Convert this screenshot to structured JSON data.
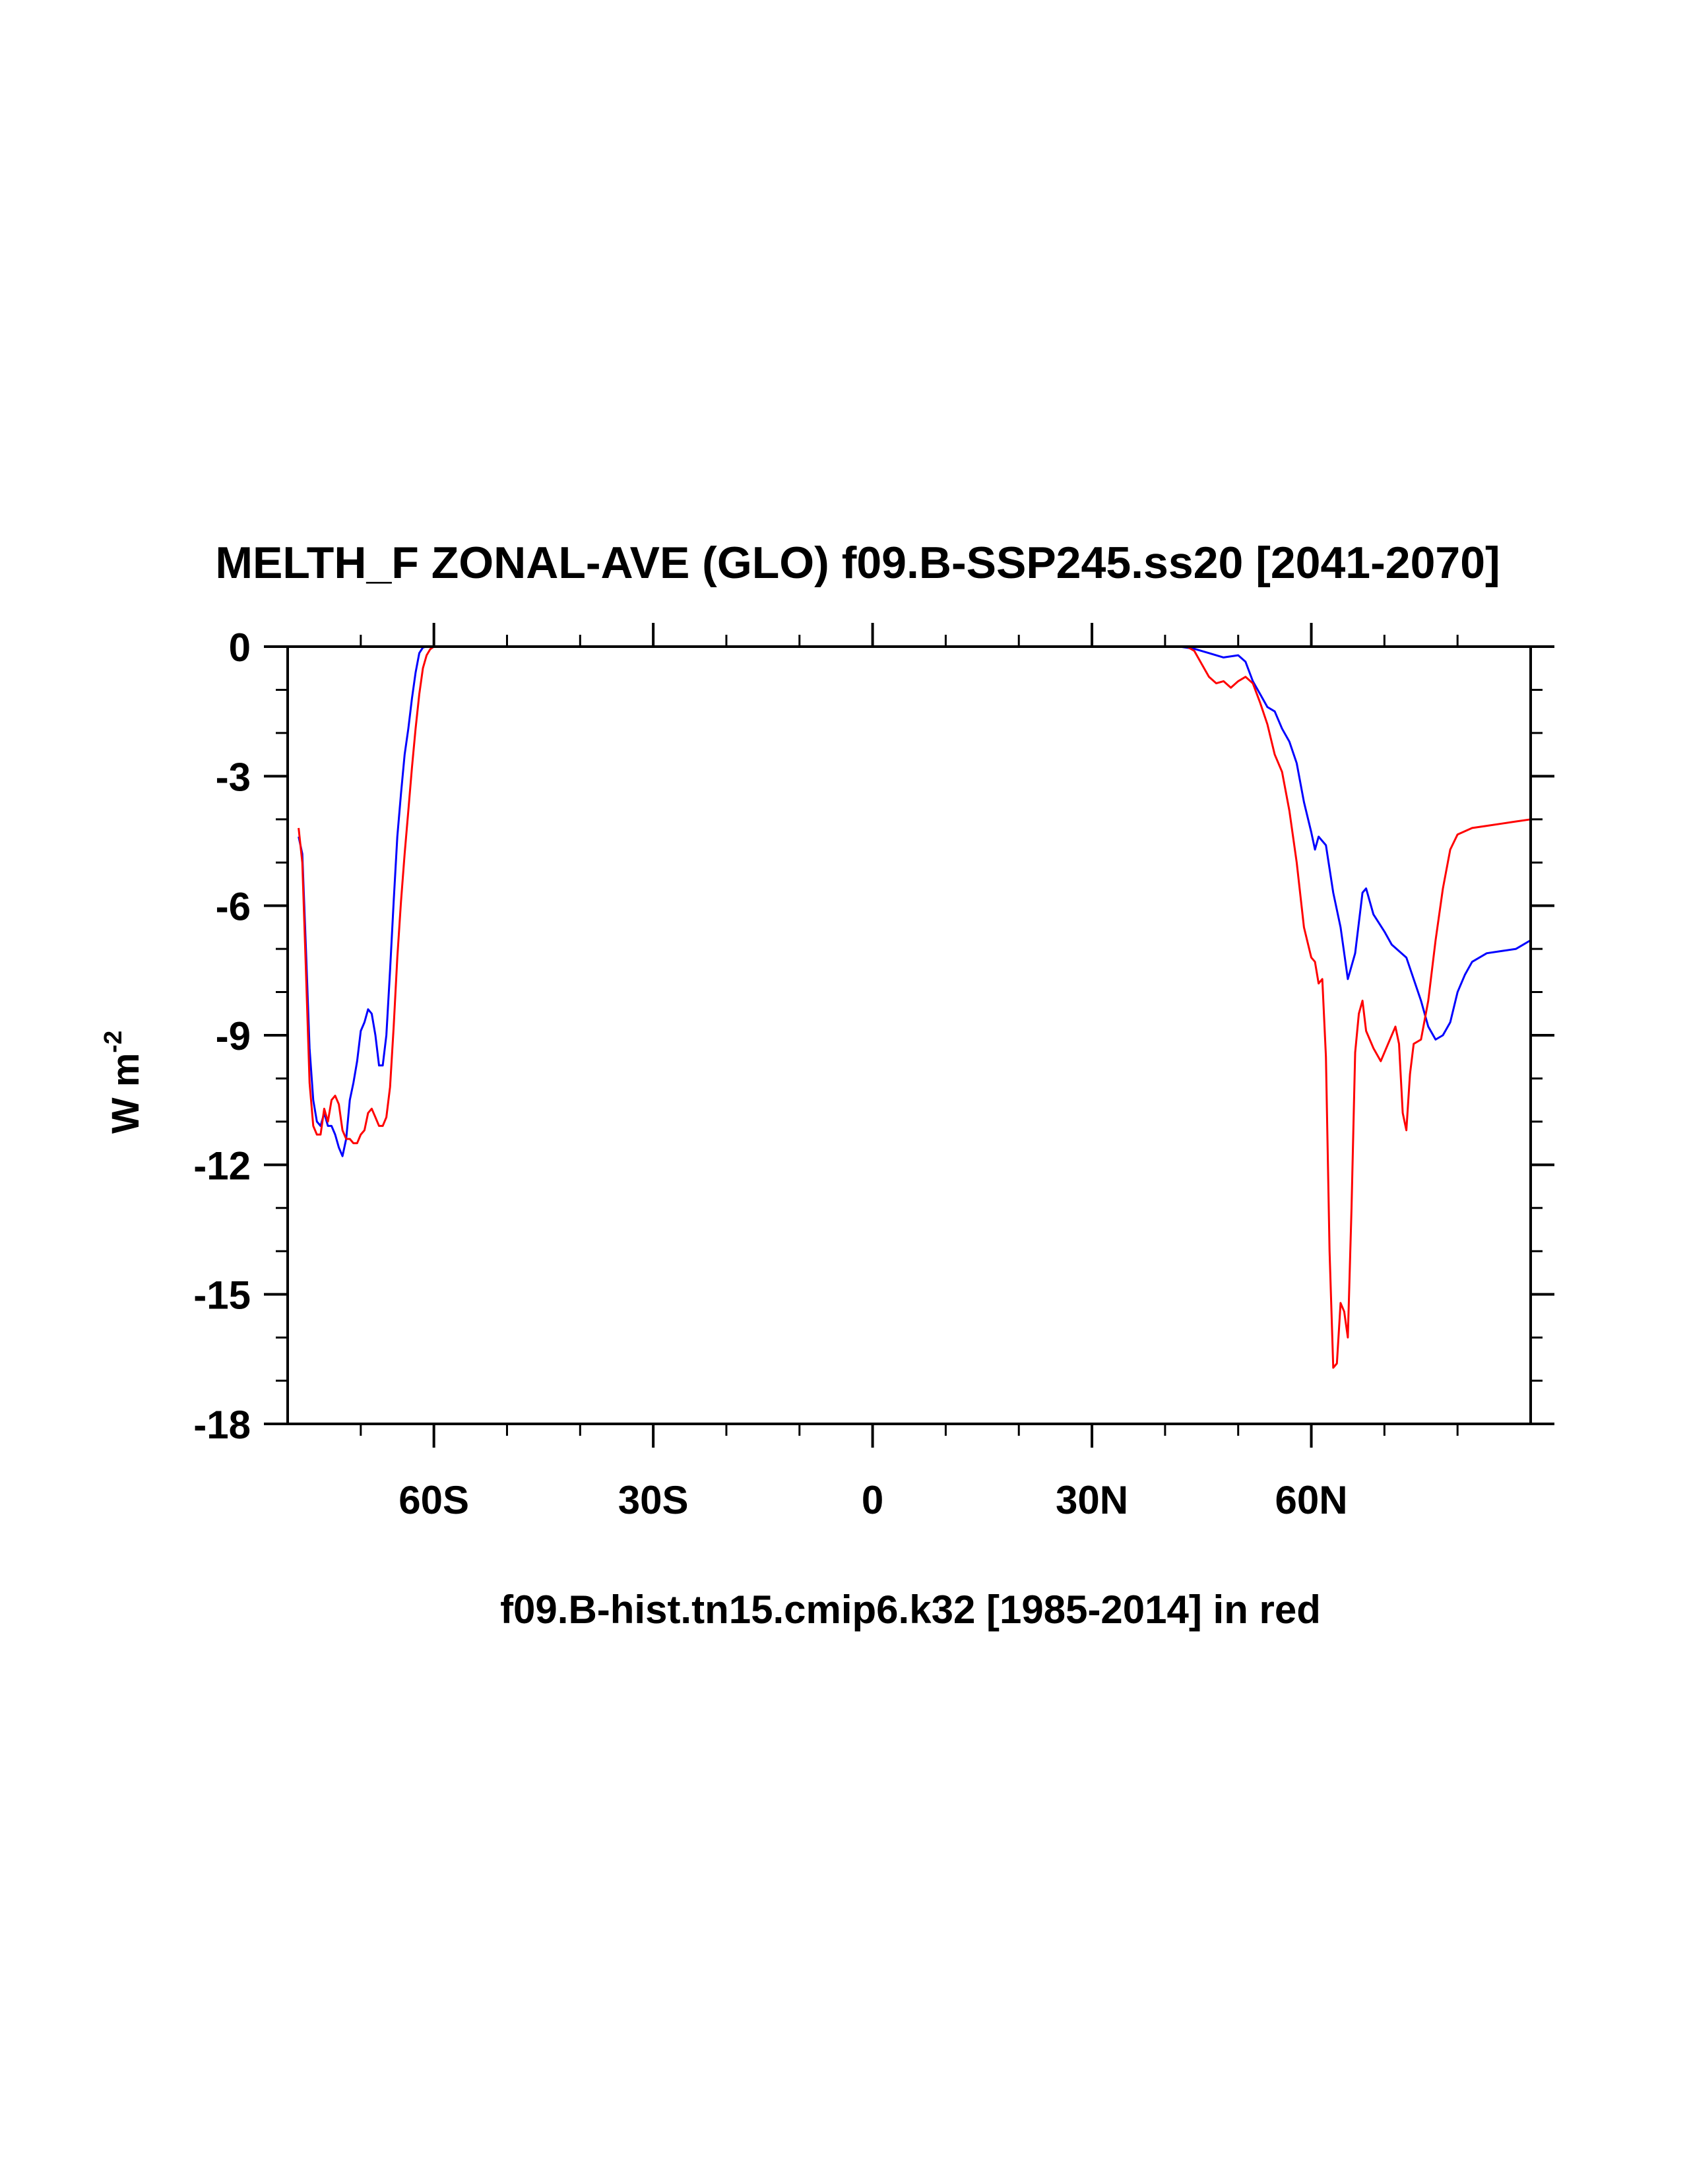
{
  "chart_data": {
    "type": "line",
    "title": "MELTH_F ZONAL-AVE (GLO) f09.B-SSP245.ss20 [2041-2070]",
    "ylabel": "W m",
    "ylabel_superscript": "-2",
    "footer": "f09.B-hist.tn15.cmip6.k32 [1985-2014] in red",
    "xlim": [
      -80,
      90
    ],
    "ylim": [
      -18,
      0
    ],
    "x_ticks": [
      {
        "value": -60,
        "label": "60S"
      },
      {
        "value": -30,
        "label": "30S"
      },
      {
        "value": 0,
        "label": "0"
      },
      {
        "value": 30,
        "label": "30N"
      },
      {
        "value": 60,
        "label": "60N"
      }
    ],
    "y_ticks": [
      {
        "value": 0,
        "label": "0"
      },
      {
        "value": -3,
        "label": "-3"
      },
      {
        "value": -6,
        "label": "-6"
      },
      {
        "value": -9,
        "label": "-9"
      },
      {
        "value": -12,
        "label": "-12"
      },
      {
        "value": -15,
        "label": "-15"
      },
      {
        "value": -18,
        "label": "-18"
      }
    ],
    "grid": false,
    "series": [
      {
        "color": "#0000ff",
        "points": [
          [
            -78.5,
            -4.4
          ],
          [
            -78,
            -4.8
          ],
          [
            -77.5,
            -7.0
          ],
          [
            -77,
            -9.3
          ],
          [
            -76.5,
            -10.5
          ],
          [
            -76,
            -11.0
          ],
          [
            -75.5,
            -11.1
          ],
          [
            -75,
            -10.8
          ],
          [
            -74.5,
            -11.1
          ],
          [
            -74,
            -11.1
          ],
          [
            -73.5,
            -11.3
          ],
          [
            -73,
            -11.6
          ],
          [
            -72.5,
            -11.8
          ],
          [
            -72,
            -11.4
          ],
          [
            -71.5,
            -10.5
          ],
          [
            -71,
            -10.1
          ],
          [
            -70.5,
            -9.6
          ],
          [
            -70,
            -8.9
          ],
          [
            -69.5,
            -8.7
          ],
          [
            -69,
            -8.4
          ],
          [
            -68.5,
            -8.5
          ],
          [
            -68,
            -9.0
          ],
          [
            -67.5,
            -9.7
          ],
          [
            -67,
            -9.7
          ],
          [
            -66.5,
            -9.0
          ],
          [
            -66,
            -7.5
          ],
          [
            -65.5,
            -5.9
          ],
          [
            -65,
            -4.4
          ],
          [
            -64.5,
            -3.4
          ],
          [
            -64,
            -2.5
          ],
          [
            -63.5,
            -1.9
          ],
          [
            -63,
            -1.2
          ],
          [
            -62.5,
            -0.6
          ],
          [
            -62,
            -0.15
          ],
          [
            -61.5,
            -0.02
          ],
          [
            -61,
            0
          ],
          [
            42,
            0
          ],
          [
            44,
            -0.05
          ],
          [
            46,
            -0.15
          ],
          [
            48,
            -0.25
          ],
          [
            50,
            -0.2
          ],
          [
            51,
            -0.35
          ],
          [
            52,
            -0.8
          ],
          [
            53,
            -1.1
          ],
          [
            54,
            -1.4
          ],
          [
            55,
            -1.5
          ],
          [
            56,
            -1.9
          ],
          [
            57,
            -2.2
          ],
          [
            58,
            -2.7
          ],
          [
            59,
            -3.6
          ],
          [
            60,
            -4.3
          ],
          [
            60.5,
            -4.7
          ],
          [
            61,
            -4.4
          ],
          [
            62,
            -4.6
          ],
          [
            63,
            -5.7
          ],
          [
            64,
            -6.5
          ],
          [
            65,
            -7.7
          ],
          [
            66,
            -7.1
          ],
          [
            67,
            -5.7
          ],
          [
            67.5,
            -5.6
          ],
          [
            68.5,
            -6.2
          ],
          [
            70,
            -6.6
          ],
          [
            71,
            -6.9
          ],
          [
            73,
            -7.2
          ],
          [
            75,
            -8.2
          ],
          [
            76,
            -8.8
          ],
          [
            77,
            -9.1
          ],
          [
            78,
            -9.0
          ],
          [
            79,
            -8.7
          ],
          [
            80,
            -8.0
          ],
          [
            81,
            -7.6
          ],
          [
            82,
            -7.3
          ],
          [
            84,
            -7.1
          ],
          [
            86,
            -7.05
          ],
          [
            88,
            -7.0
          ],
          [
            89,
            -6.9
          ],
          [
            90,
            -6.8
          ]
        ]
      },
      {
        "color": "#ff0000",
        "points": [
          [
            -78.5,
            -4.2
          ],
          [
            -78,
            -5.0
          ],
          [
            -77.5,
            -7.5
          ],
          [
            -77,
            -10.1
          ],
          [
            -76.5,
            -11.1
          ],
          [
            -76,
            -11.3
          ],
          [
            -75.5,
            -11.3
          ],
          [
            -75,
            -10.7
          ],
          [
            -74.5,
            -11.0
          ],
          [
            -74,
            -10.5
          ],
          [
            -73.5,
            -10.4
          ],
          [
            -73,
            -10.6
          ],
          [
            -72.5,
            -11.2
          ],
          [
            -72,
            -11.4
          ],
          [
            -71.5,
            -11.4
          ],
          [
            -71,
            -11.5
          ],
          [
            -70.5,
            -11.5
          ],
          [
            -70,
            -11.3
          ],
          [
            -69.5,
            -11.2
          ],
          [
            -69,
            -10.8
          ],
          [
            -68.5,
            -10.7
          ],
          [
            -68,
            -10.9
          ],
          [
            -67.5,
            -11.1
          ],
          [
            -67,
            -11.1
          ],
          [
            -66.5,
            -10.9
          ],
          [
            -66,
            -10.2
          ],
          [
            -65.5,
            -8.8
          ],
          [
            -65,
            -7.2
          ],
          [
            -64.5,
            -5.9
          ],
          [
            -64,
            -4.8
          ],
          [
            -63.5,
            -3.8
          ],
          [
            -63,
            -2.8
          ],
          [
            -62.5,
            -1.9
          ],
          [
            -62,
            -1.1
          ],
          [
            -61.5,
            -0.5
          ],
          [
            -61,
            -0.2
          ],
          [
            -60.5,
            -0.06
          ],
          [
            -60,
            0
          ],
          [
            43,
            0
          ],
          [
            44,
            -0.1
          ],
          [
            45,
            -0.4
          ],
          [
            46,
            -0.7
          ],
          [
            47,
            -0.85
          ],
          [
            48,
            -0.8
          ],
          [
            49,
            -0.95
          ],
          [
            50,
            -0.8
          ],
          [
            51,
            -0.7
          ],
          [
            52,
            -0.85
          ],
          [
            53,
            -1.3
          ],
          [
            54,
            -1.8
          ],
          [
            55,
            -2.5
          ],
          [
            56,
            -2.9
          ],
          [
            57,
            -3.8
          ],
          [
            58,
            -5.0
          ],
          [
            59,
            -6.5
          ],
          [
            60,
            -7.2
          ],
          [
            60.5,
            -7.3
          ],
          [
            61,
            -7.8
          ],
          [
            61.5,
            -7.7
          ],
          [
            62,
            -9.5
          ],
          [
            62.5,
            -14.0
          ],
          [
            63,
            -16.7
          ],
          [
            63.5,
            -16.6
          ],
          [
            64,
            -15.2
          ],
          [
            64.5,
            -15.4
          ],
          [
            65,
            -16.0
          ],
          [
            65.5,
            -13.0
          ],
          [
            66,
            -9.4
          ],
          [
            66.5,
            -8.5
          ],
          [
            67,
            -8.2
          ],
          [
            67.5,
            -8.9
          ],
          [
            68.5,
            -9.3
          ],
          [
            69.5,
            -9.6
          ],
          [
            70.5,
            -9.2
          ],
          [
            71.5,
            -8.8
          ],
          [
            72,
            -9.2
          ],
          [
            72.5,
            -10.8
          ],
          [
            73,
            -11.2
          ],
          [
            73.5,
            -9.9
          ],
          [
            74,
            -9.2
          ],
          [
            75,
            -9.1
          ],
          [
            76,
            -8.2
          ],
          [
            77,
            -6.8
          ],
          [
            78,
            -5.6
          ],
          [
            79,
            -4.7
          ],
          [
            80,
            -4.35
          ],
          [
            82,
            -4.2
          ],
          [
            84,
            -4.15
          ],
          [
            86,
            -4.1
          ],
          [
            88,
            -4.05
          ],
          [
            90,
            -4.0
          ]
        ]
      }
    ]
  }
}
